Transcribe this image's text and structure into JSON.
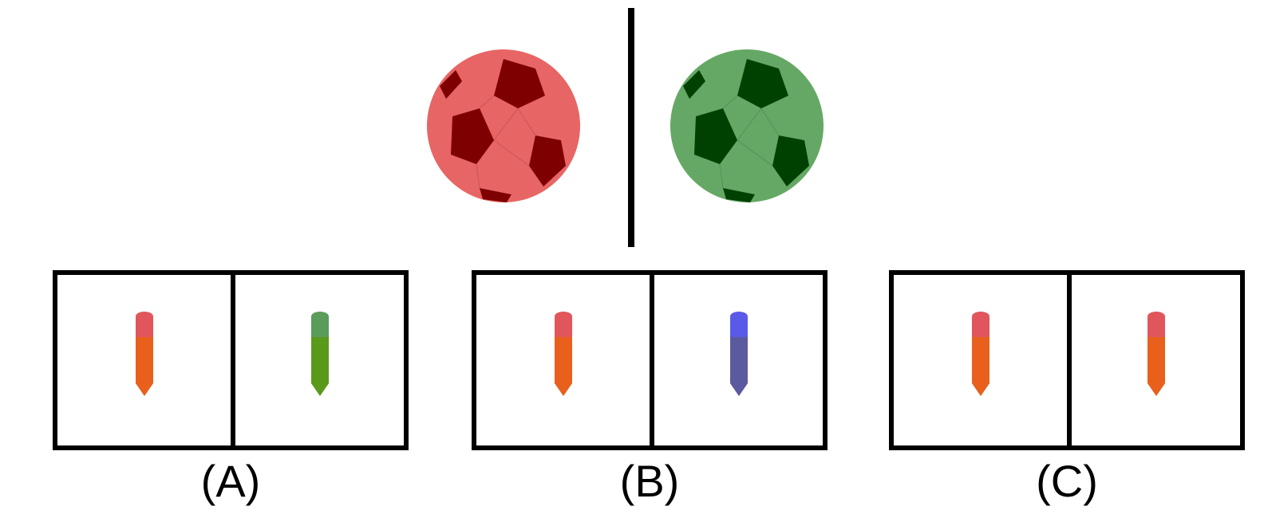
{
  "question": {
    "left_ball": {
      "icon": "soccer-ball-icon",
      "color": "#e86565",
      "patch_color": "#7f0000"
    },
    "right_ball": {
      "icon": "soccer-ball-icon",
      "color": "#65a865",
      "patch_color": "#004000"
    }
  },
  "options": [
    {
      "label": "(A)",
      "left_item": {
        "icon": "crayon-icon",
        "cap_color": "#e0565c",
        "body_color": "#e8601c"
      },
      "right_item": {
        "icon": "crayon-icon",
        "cap_color": "#5a9c5a",
        "body_color": "#5a9a1a"
      }
    },
    {
      "label": "(B)",
      "left_item": {
        "icon": "crayon-icon",
        "cap_color": "#e0565c",
        "body_color": "#e8601c"
      },
      "right_item": {
        "icon": "crayon-icon",
        "cap_color": "#5a5ae8",
        "body_color": "#5c5a9e"
      }
    },
    {
      "label": "(C)",
      "left_item": {
        "icon": "crayon-icon",
        "cap_color": "#e0565c",
        "body_color": "#e8601c"
      },
      "right_item": {
        "icon": "crayon-icon",
        "cap_color": "#e0565c",
        "body_color": "#e8601c"
      }
    }
  ]
}
